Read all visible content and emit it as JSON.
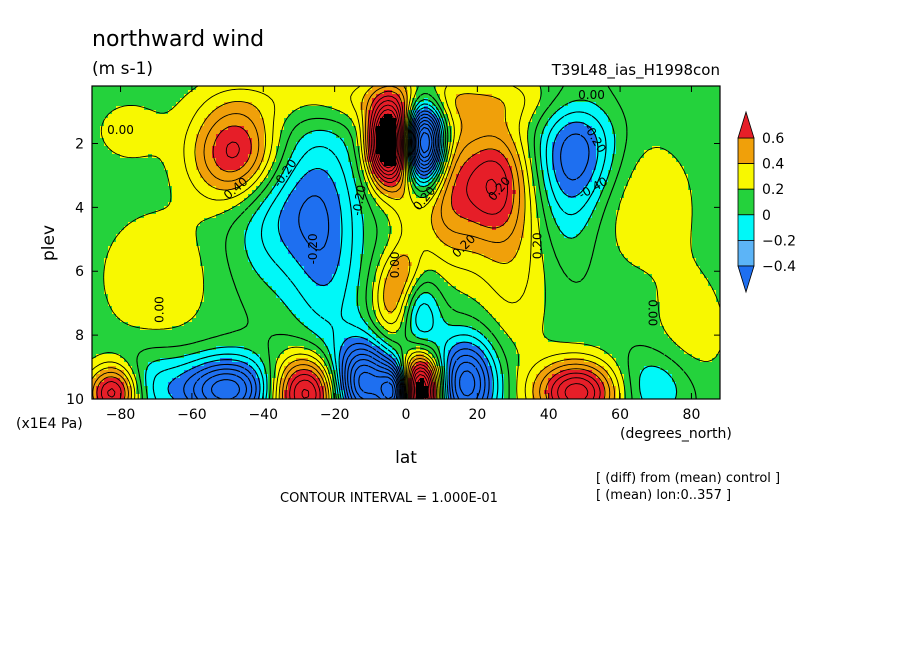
{
  "chart_data": {
    "type": "heatmap",
    "title": "northward wind",
    "units": "(m s-1)",
    "run_label": "T39L48_ias_H1998con",
    "xlabel": "lat",
    "x_units": "(degrees_north)",
    "ylabel": "plev",
    "y_units": "(x1E4 Pa)",
    "xlim": [
      -88,
      88
    ],
    "ylim": [
      10,
      0.2
    ],
    "x_ticks": [
      -80,
      -60,
      -40,
      -20,
      0,
      20,
      40,
      60,
      80
    ],
    "y_ticks": [
      10,
      8,
      6,
      4,
      2
    ],
    "contour_interval_text": "CONTOUR INTERVAL = 1.000E-01",
    "notes": [
      "[ (diff) from (mean) control ]",
      "[ (mean) lon:0..357 ]"
    ],
    "colorbar": {
      "ticks": [
        "0.6",
        "0.4",
        "0.2",
        "0",
        "−0.2",
        "−0.4"
      ],
      "levels": [
        -0.6,
        -0.4,
        -0.2,
        0,
        0.2,
        0.4,
        0.6
      ],
      "colors": [
        "#1e6ff0",
        "#5cb4f7",
        "#00f8f8",
        "#24d23c",
        "#f8f800",
        "#f0a00a",
        "#e61e28"
      ],
      "under_color": "#1e6ff0",
      "over_color": "#e61e28"
    },
    "contour_labels": [
      "0.00",
      "0.00",
      "0.40",
      "-0.20",
      "-0.20",
      "-0.20",
      "0.00",
      "0.20",
      "0.20",
      "0.20",
      "0.20",
      "-0.20",
      "-0.40",
      "0.00",
      "0.00"
    ],
    "features": [
      {
        "lat": -47,
        "plev": 2.3,
        "amp": 0.7,
        "sx": 9,
        "sy": 1.1
      },
      {
        "lat": -35,
        "plev": 3.8,
        "amp": -0.35,
        "sx": 10,
        "sy": 1.8
      },
      {
        "lat": -22,
        "plev": 5.2,
        "amp": -0.3,
        "sx": 7,
        "sy": 2.5
      },
      {
        "lat": -5,
        "plev": 2.0,
        "amp": 1.4,
        "sx": 4,
        "sy": 0.9
      },
      {
        "lat": 5,
        "plev": 2.0,
        "amp": -1.4,
        "sx": 4,
        "sy": 0.9
      },
      {
        "lat": 12,
        "plev": 3.5,
        "amp": 0.45,
        "sx": 7,
        "sy": 1.6
      },
      {
        "lat": 25,
        "plev": 3.2,
        "amp": 0.45,
        "sx": 6,
        "sy": 1.2
      },
      {
        "lat": 30,
        "plev": 5.0,
        "amp": 0.25,
        "sx": 8,
        "sy": 2.5
      },
      {
        "lat": 48,
        "plev": 2.2,
        "amp": -0.45,
        "sx": 8,
        "sy": 1.2
      },
      {
        "lat": 45,
        "plev": 4.0,
        "amp": -0.2,
        "sx": 7,
        "sy": 1.5
      },
      {
        "lat": 0,
        "plev": 6.0,
        "amp": 0.2,
        "sx": 4,
        "sy": 0.6
      },
      {
        "lat": -4,
        "plev": 7.0,
        "amp": 0.35,
        "sx": 4,
        "sy": 0.9
      },
      {
        "lat": 4,
        "plev": 7.5,
        "amp": -0.35,
        "sx": 4,
        "sy": 1.0
      },
      {
        "lat": -28,
        "plev": 9.8,
        "amp": 0.9,
        "sx": 7,
        "sy": 0.8
      },
      {
        "lat": -12,
        "plev": 9.5,
        "amp": -1.0,
        "sx": 6,
        "sy": 0.9
      },
      {
        "lat": -3,
        "plev": 9.8,
        "amp": -0.9,
        "sx": 3,
        "sy": 0.6
      },
      {
        "lat": 4,
        "plev": 9.7,
        "amp": 1.3,
        "sx": 4,
        "sy": 0.8
      },
      {
        "lat": 17,
        "plev": 9.5,
        "amp": -0.8,
        "sx": 6,
        "sy": 1.0
      },
      {
        "lat": 48,
        "plev": 9.8,
        "amp": 0.85,
        "sx": 8,
        "sy": 0.7
      },
      {
        "lat": -50,
        "plev": 9.7,
        "amp": -0.8,
        "sx": 9,
        "sy": 0.7
      },
      {
        "lat": -82,
        "plev": 9.8,
        "amp": 0.8,
        "sx": 5,
        "sy": 0.6
      },
      {
        "lat": -72,
        "plev": 9.6,
        "amp": -0.25,
        "sx": 8,
        "sy": 0.8
      },
      {
        "lat": 70,
        "plev": 9.6,
        "amp": -0.25,
        "sx": 8,
        "sy": 0.8
      },
      {
        "lat": 0,
        "plev": 3.0,
        "amp": 0.15,
        "sx": 3,
        "sy": 2.0
      }
    ],
    "background_value": -0.08,
    "background_patches": [
      {
        "lat": -70,
        "plev": 6.2,
        "amp": 0.17,
        "sx": 12,
        "sy": 1.6
      },
      {
        "lat": 65,
        "plev": 3.8,
        "amp": 0.17,
        "sx": 12,
        "sy": 1.6
      },
      {
        "lat": -20,
        "plev": 0.6,
        "amp": 0.17,
        "sx": 22,
        "sy": 0.6
      },
      {
        "lat": 20,
        "plev": 0.6,
        "amp": 0.17,
        "sx": 22,
        "sy": 0.6
      },
      {
        "lat": 80,
        "plev": 8.0,
        "amp": 0.15,
        "sx": 8,
        "sy": 1.5
      },
      {
        "lat": -78,
        "plev": 1.6,
        "amp": 0.12,
        "sx": 8,
        "sy": 0.8
      }
    ]
  }
}
